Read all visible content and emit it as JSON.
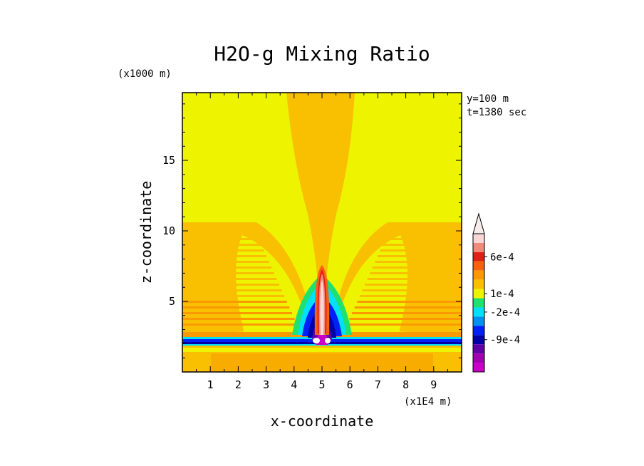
{
  "chart_data": {
    "type": "heatmap",
    "title": "H2O-g Mixing Ratio",
    "xlabel": "x-coordinate",
    "ylabel": "z-coordinate",
    "x_unit": "(x1E4 m)",
    "y_unit": "(x1000 m)",
    "info_lines": [
      "y=100 m",
      "t=1380 sec"
    ],
    "xlim": [
      0,
      10
    ],
    "ylim": [
      0,
      19.8
    ],
    "x_ticks": [
      1,
      2,
      3,
      4,
      5,
      6,
      7,
      8,
      9
    ],
    "y_ticks": [
      5,
      10,
      15
    ],
    "colorbar": {
      "labeled_levels": [
        {
          "value": 0.0006,
          "label": "6e-4"
        },
        {
          "value": 0.0001,
          "label": "1e-4"
        },
        {
          "value": -0.0002,
          "label": "-2e-4"
        },
        {
          "value": -0.0009,
          "label": "-9e-4"
        }
      ],
      "levels_top_to_bottom": [
        "#f7d6d6",
        "#f08a7a",
        "#e02018",
        "#f86010",
        "#fa9a00",
        "#f8c000",
        "#eef400",
        "#20e070",
        "#00e0f8",
        "#0090f0",
        "#0020f8",
        "#0000a8",
        "#6000a8",
        "#a000b0",
        "#c800c8"
      ],
      "extends_max": true
    },
    "field_description_colors": {
      "background": "#eef400",
      "plume": "#f8c000",
      "band": "#fa9a00"
    }
  }
}
